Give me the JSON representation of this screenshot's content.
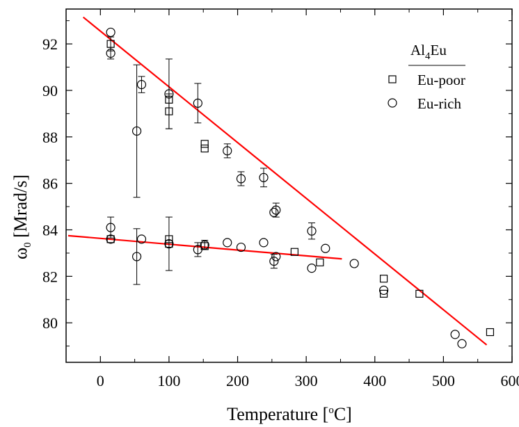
{
  "chart_data": {
    "type": "scatter",
    "xlabel_main": "Temperature [",
    "xlabel_sup": "o",
    "xlabel_tail": "C]",
    "ylabel_main": "ω",
    "ylabel_sub": "0",
    "ylabel_tail": " [Mrad/s]",
    "xlim": [
      -50,
      600
    ],
    "ylim": [
      78.3,
      93.5
    ],
    "xticks": [
      0,
      100,
      200,
      300,
      400,
      500,
      600
    ],
    "yticks": [
      80,
      82,
      84,
      86,
      88,
      90,
      92
    ],
    "legend": {
      "title_main": "Al",
      "title_sub": "4",
      "title_tail": "Eu",
      "placement": "top-right"
    },
    "series": [
      {
        "name": "Eu-poor",
        "marker": "square",
        "points": [
          {
            "x": 15,
            "y": 92.0,
            "err": 0.3
          },
          {
            "x": 15,
            "y": 83.6
          },
          {
            "x": 100,
            "y": 89.6
          },
          {
            "x": 100,
            "y": 89.1,
            "err": 0.75
          },
          {
            "x": 100,
            "y": 83.6
          },
          {
            "x": 100,
            "y": 83.4
          },
          {
            "x": 152,
            "y": 87.7
          },
          {
            "x": 152,
            "y": 87.5
          },
          {
            "x": 152,
            "y": 83.3
          },
          {
            "x": 283,
            "y": 83.05
          },
          {
            "x": 320,
            "y": 82.6
          },
          {
            "x": 413,
            "y": 81.9
          },
          {
            "x": 413,
            "y": 81.25
          },
          {
            "x": 465,
            "y": 81.25
          },
          {
            "x": 568,
            "y": 79.6
          }
        ]
      },
      {
        "name": "Eu-rich",
        "marker": "circle",
        "points": [
          {
            "x": 15,
            "y": 92.5
          },
          {
            "x": 15,
            "y": 91.6,
            "err": 0.25
          },
          {
            "x": 15,
            "y": 84.1,
            "err": 0.45
          },
          {
            "x": 15,
            "y": 83.6
          },
          {
            "x": 53,
            "y": 88.25,
            "err": 2.85
          },
          {
            "x": 53,
            "y": 82.85,
            "err": 1.2
          },
          {
            "x": 60,
            "y": 90.25,
            "err": 0.35
          },
          {
            "x": 60,
            "y": 83.6
          },
          {
            "x": 100,
            "y": 89.85,
            "err": 1.5
          },
          {
            "x": 100,
            "y": 83.4,
            "err": 1.15
          },
          {
            "x": 142,
            "y": 89.45,
            "err": 0.85
          },
          {
            "x": 142,
            "y": 83.15,
            "err": 0.3
          },
          {
            "x": 152,
            "y": 83.35,
            "err": 0.2
          },
          {
            "x": 185,
            "y": 87.4,
            "err": 0.3
          },
          {
            "x": 185,
            "y": 83.45
          },
          {
            "x": 205,
            "y": 86.2,
            "err": 0.3
          },
          {
            "x": 205,
            "y": 83.25
          },
          {
            "x": 238,
            "y": 86.25,
            "err": 0.4
          },
          {
            "x": 238,
            "y": 83.45
          },
          {
            "x": 253,
            "y": 84.75
          },
          {
            "x": 256,
            "y": 84.85,
            "err": 0.3
          },
          {
            "x": 253,
            "y": 82.65,
            "err": 0.3
          },
          {
            "x": 256,
            "y": 82.85
          },
          {
            "x": 308,
            "y": 83.95,
            "err": 0.35
          },
          {
            "x": 308,
            "y": 82.35
          },
          {
            "x": 328,
            "y": 83.2
          },
          {
            "x": 370,
            "y": 82.55
          },
          {
            "x": 413,
            "y": 81.4
          },
          {
            "x": 517,
            "y": 79.5
          },
          {
            "x": 527,
            "y": 79.1
          }
        ]
      }
    ],
    "fit_lines": [
      {
        "from": [
          -25,
          93.15
        ],
        "to": [
          563,
          79.05
        ],
        "color": "#ff0000"
      },
      {
        "from": [
          -47,
          83.75
        ],
        "to": [
          352,
          82.75
        ],
        "color": "#ff0000"
      }
    ]
  }
}
